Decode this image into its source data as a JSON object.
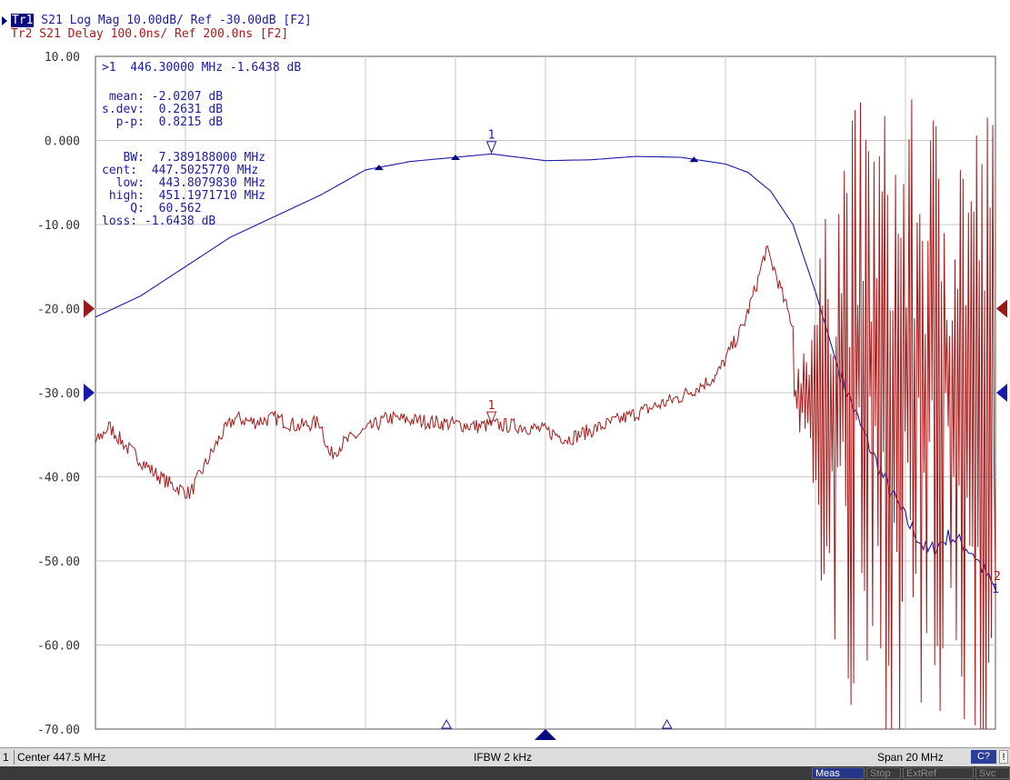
{
  "header": {
    "tr1_tag": "Tr1",
    "tr1_text": " S21 Log Mag 10.00dB/ Ref -30.00dB [F2]",
    "tr2_text": "Tr2 S21 Delay 100.0ns/ Ref 200.0ns [F2]"
  },
  "annotations": {
    "marker_readout": ">1  446.30000 MHz -1.6438 dB",
    "mean": " mean: -2.0207 dB",
    "sdev": "s.dev:  0.2631 dB",
    "pp": "  p-p:  0.8215 dB",
    "bw": "   BW:  7.389188000 MHz",
    "cent": "cent:  447.5025770 MHz",
    "low": "  low:  443.8079830 MHz",
    "high": " high:  451.1971710 MHz",
    "q": "    Q:  60.562",
    "loss": "loss: -1.6438 dB",
    "marker_label": "1",
    "end_label_tr1": "1",
    "end_label_tr2": "2"
  },
  "status": {
    "channel": "1",
    "center": "Center 447.5 MHz",
    "ifbw": "IFBW 2 kHz",
    "span": "Span 20 MHz",
    "cal": "C?",
    "warn": "!"
  },
  "softkeys": [
    "Meas",
    "Stop",
    "ExtRef",
    "Svc"
  ],
  "colors": {
    "tr1": "#1a1aa8",
    "tr2": "#a81a1a",
    "grid": "#c8c8c8",
    "ref_marker_tr1": "#1a1aa8",
    "ref_marker_tr2": "#9a1a1a"
  },
  "chart_data": {
    "type": "line",
    "title": "",
    "xlabel": "",
    "ylabel": "",
    "xlim": [
      437.5,
      457.5
    ],
    "ylim": [
      -70,
      10
    ],
    "grid": true,
    "y_ticks": [
      "10.00",
      "0.000",
      "-10.00",
      "-20.00",
      "-30.00",
      "-40.00",
      "-50.00",
      "-60.00",
      "-70.00"
    ],
    "series": [
      {
        "color": "#1a1aa8",
        "x": [
          437.5,
          438.5,
          439.5,
          440.5,
          441.5,
          442.5,
          443.5,
          444.5,
          445.5,
          446.3,
          447.5,
          448.5,
          449.5,
          450.5,
          451.5,
          452.0,
          452.5,
          453.0,
          453.5,
          454.0,
          454.5,
          455.0,
          455.5,
          456.0,
          456.5,
          457.0,
          457.5
        ],
        "values": [
          -21.0,
          -18.5,
          -15.0,
          -11.5,
          -9.0,
          -6.5,
          -3.5,
          -2.5,
          -2.0,
          -1.6,
          -2.4,
          -2.3,
          -1.9,
          -2.0,
          -2.8,
          -3.8,
          -6.0,
          -10.0,
          -18.0,
          -27.0,
          -34.0,
          -40.0,
          -45.0,
          -49.0,
          -47.0,
          -49.0,
          -53.5
        ]
      },
      {
        "color": "#a81a1a",
        "x": [
          437.5,
          437.8,
          438.2,
          438.5,
          438.8,
          439.2,
          439.6,
          440.0,
          440.3,
          440.6,
          441.0,
          441.5,
          442.0,
          442.5,
          442.7,
          443.0,
          443.5,
          444.0,
          445.0,
          446.0,
          446.3,
          447.0,
          447.5,
          448.0,
          448.5,
          449.0,
          449.5,
          450.0,
          450.5,
          451.0,
          451.3,
          451.6,
          451.9,
          452.2,
          452.4,
          452.6,
          452.8,
          453.0
        ],
        "values": [
          -36.0,
          -34.0,
          -36.5,
          -38.0,
          -39.5,
          -41.0,
          -42.0,
          -38.0,
          -35.0,
          -33.0,
          -33.5,
          -33.0,
          -34.0,
          -33.5,
          -37.5,
          -36.0,
          -34.5,
          -33.0,
          -33.5,
          -34.0,
          -33.8,
          -34.0,
          -34.5,
          -35.5,
          -34.5,
          -33.5,
          -32.5,
          -31.5,
          -30.5,
          -29.0,
          -28.0,
          -25.0,
          -22.0,
          -17.0,
          -13.0,
          -15.5,
          -19.0,
          -22.0
        ]
      }
    ],
    "noise_region": {
      "series": 1,
      "x_start": 453.0,
      "x_end": 457.5,
      "y_min": -70,
      "y_max": 10,
      "end_value": -52.5
    },
    "markers": [
      {
        "trace": 1,
        "label": "1",
        "x": 446.3,
        "value": -1.6438
      },
      {
        "trace": 2,
        "label": "1",
        "x": 446.3,
        "value": -33.8
      }
    ],
    "bw_markers_x": [
      443.8,
      445.5,
      450.8
    ],
    "stimulus_markers_x": [
      445.3,
      447.5,
      450.2
    ],
    "ref_level_tr1": -30,
    "ref_level_tr2": -20
  }
}
